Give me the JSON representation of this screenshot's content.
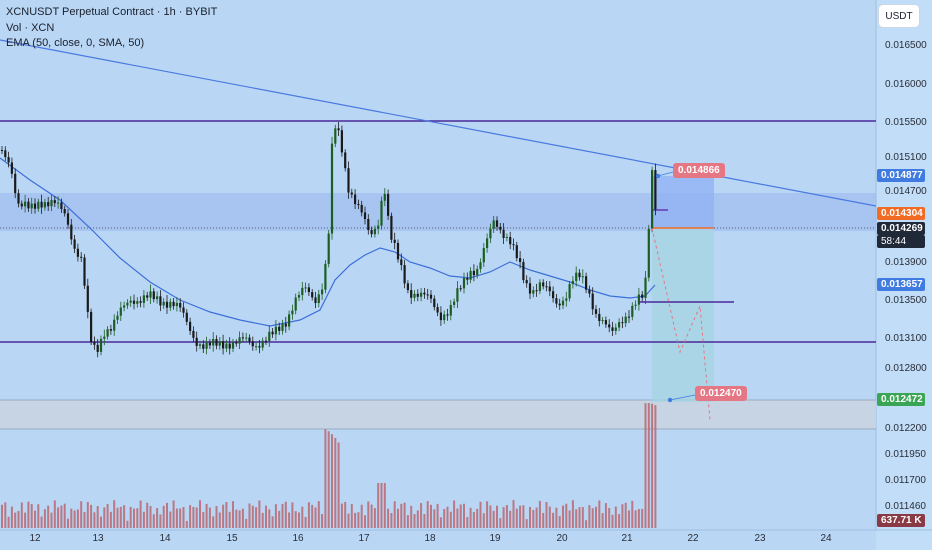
{
  "legend": {
    "title": "XCNUSDT Perpetual Contract · 1h · BYBIT",
    "volume": "Vol · XCN",
    "ema": "EMA (50, close, 0, SMA, 50)"
  },
  "currency_button": "USDT",
  "price_ticks": [
    "0.016500",
    "0.016000",
    "0.015500",
    "0.015100",
    "0.014700",
    "0.013900",
    "0.013500",
    "0.013100",
    "0.012800",
    "0.012200",
    "0.011950",
    "0.011700",
    "0.011460"
  ],
  "price_tags": {
    "upper": "0.014877",
    "entry": "0.014304",
    "last": "0.014269",
    "countdown": "58:44",
    "ema": "0.013657",
    "target": "0.012472",
    "volume": "637.71 K"
  },
  "annotations": {
    "top": "0.014866",
    "bottom": "0.012470"
  },
  "time_labels": [
    "12",
    "13",
    "14",
    "15",
    "16",
    "17",
    "18",
    "19",
    "20",
    "21",
    "22",
    "23",
    "24"
  ],
  "colors": {
    "background": "#b9d7f5",
    "bull": "#1b5e20",
    "bear": "#1a1a1a",
    "trendline": "#4a79e0",
    "level_lines": "#4b2a9a",
    "ema": "#3d6fd8",
    "entry": "#f26b24",
    "target_label": "#e57684",
    "volume_bar": "#b8676f"
  },
  "icons": [
    "dropdown-currency"
  ]
}
